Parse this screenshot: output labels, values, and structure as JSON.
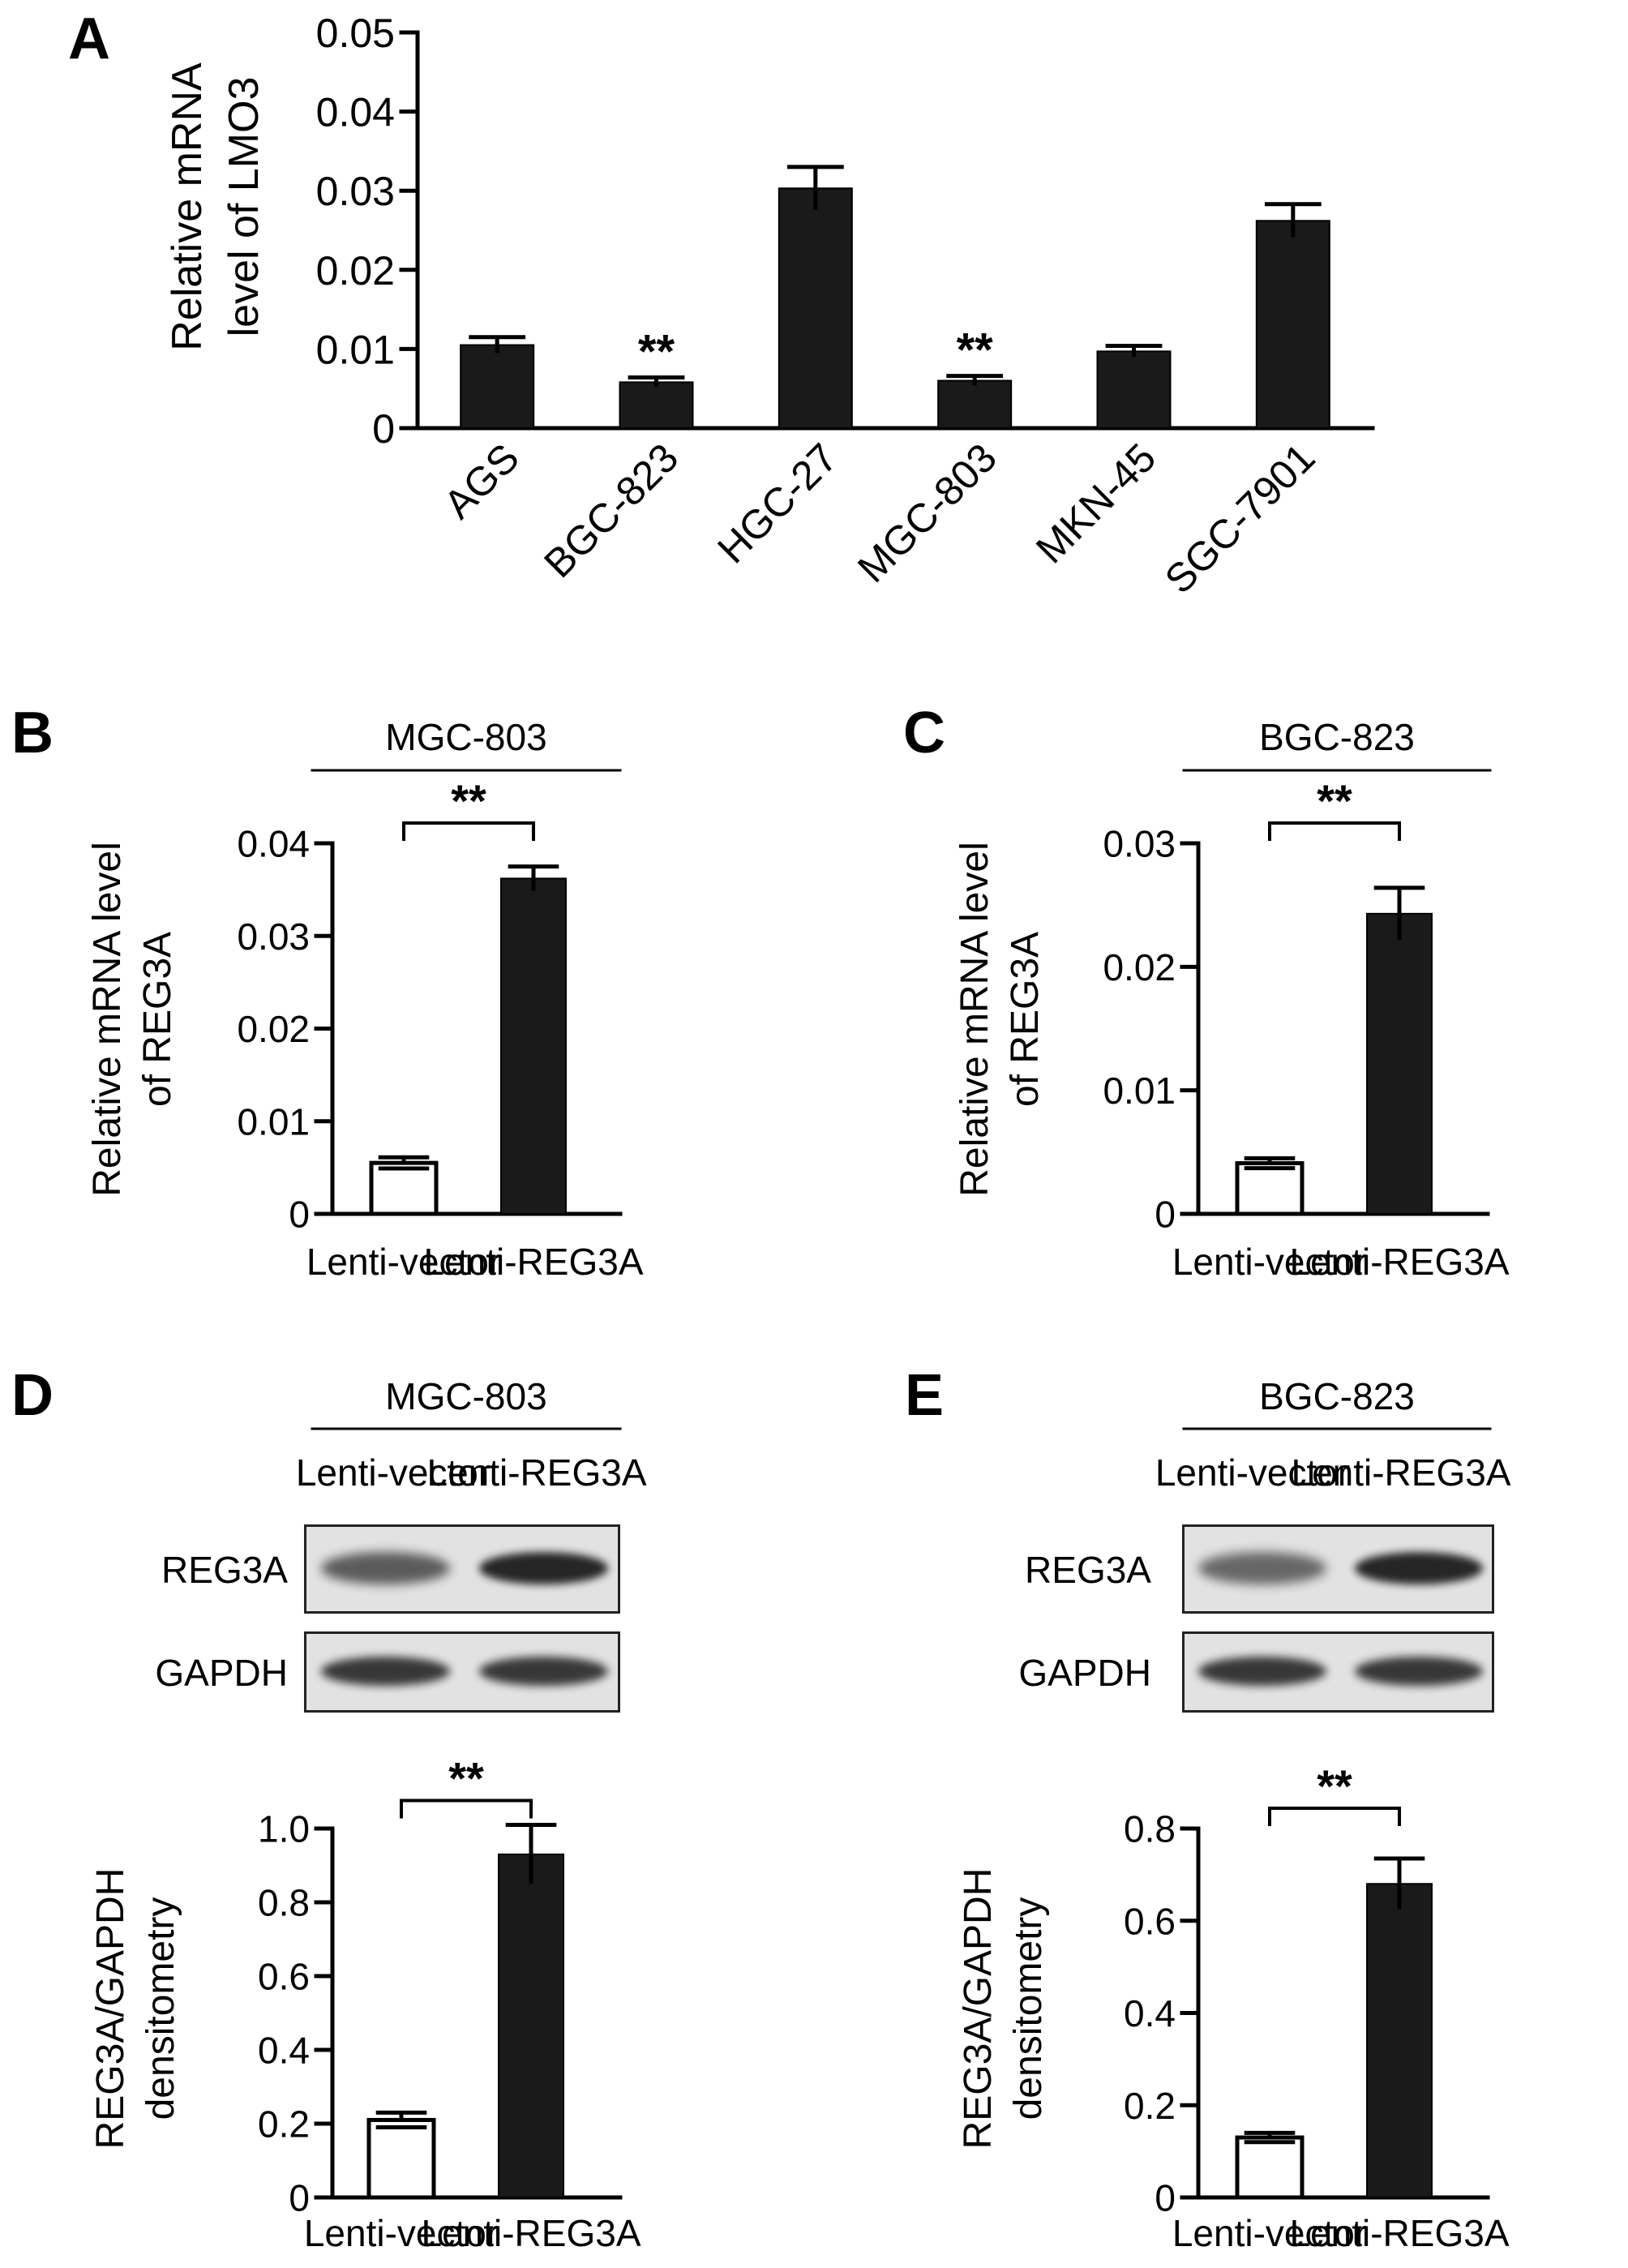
{
  "colors": {
    "filled_bar": "#1a1a1a",
    "open_bar": "#ffffff",
    "axis": "#000000",
    "blot_bg": "#e2e2e2",
    "band": "#1c1c1c"
  },
  "chart_data": [
    {
      "panel": "A",
      "type": "bar",
      "ylabel": [
        "Relative mRNA",
        "level of LMO3"
      ],
      "categories": [
        "AGS",
        "BGC-823",
        "HGC-27",
        "MGC-803",
        "MKN-45",
        "SGC-7901"
      ],
      "values": [
        0.0105,
        0.0058,
        0.0303,
        0.006,
        0.0097,
        0.0262
      ],
      "errors": [
        0.001,
        0.0006,
        0.0027,
        0.0006,
        0.0007,
        0.0021
      ],
      "significance": [
        "",
        "**",
        "",
        "**",
        "",
        ""
      ],
      "fills": [
        "filled",
        "filled",
        "filled",
        "filled",
        "filled",
        "filled"
      ],
      "ylim": [
        0,
        0.05
      ],
      "yticks": [
        0,
        0.01,
        0.02,
        0.03,
        0.04,
        0.05
      ],
      "yticklabels": [
        "0",
        "0.01",
        "0.02",
        "0.03",
        "0.04",
        "0.05"
      ]
    },
    {
      "panel": "B",
      "type": "bar",
      "header": "MGC-803",
      "ylabel": [
        "Relative mRNA level",
        "of REG3A"
      ],
      "categories": [
        "Lenti-vector",
        "Lenti-REG3A"
      ],
      "values": [
        0.0055,
        0.0362
      ],
      "errors": [
        0.0006,
        0.0013
      ],
      "fills": [
        "open",
        "filled"
      ],
      "significance_bracket": "**",
      "ylim": [
        0,
        0.04
      ],
      "yticks": [
        0,
        0.01,
        0.02,
        0.03,
        0.04
      ],
      "yticklabels": [
        "0",
        "0.01",
        "0.02",
        "0.03",
        "0.04"
      ]
    },
    {
      "panel": "C",
      "type": "bar",
      "header": "BGC-823",
      "ylabel": [
        "Relative mRNA level",
        "of REG3A"
      ],
      "categories": [
        "Lenti-vector",
        "Lenti-REG3A"
      ],
      "values": [
        0.0041,
        0.0243
      ],
      "errors": [
        0.0004,
        0.0021
      ],
      "fills": [
        "open",
        "filled"
      ],
      "significance_bracket": "**",
      "ylim": [
        0,
        0.03
      ],
      "yticks": [
        0,
        0.01,
        0.02,
        0.03
      ],
      "yticklabels": [
        "0",
        "0.01",
        "0.02",
        "0.03"
      ]
    },
    {
      "panel": "D",
      "type": "bar",
      "ylabel": [
        "REG3A/GAPDH",
        "densitometry"
      ],
      "categories": [
        "Lenti-vector",
        "Lenti-REG3A"
      ],
      "values": [
        0.21,
        0.93
      ],
      "errors": [
        0.02,
        0.08
      ],
      "fills": [
        "open",
        "filled"
      ],
      "significance_bracket": "**",
      "ylim": [
        0,
        1.0
      ],
      "yticks": [
        0,
        0.2,
        0.4,
        0.6,
        0.8,
        1.0
      ],
      "yticklabels": [
        "0",
        "0.2",
        "0.4",
        "0.6",
        "0.8",
        "1.0"
      ]
    },
    {
      "panel": "E",
      "type": "bar",
      "ylabel": [
        "REG3A/GAPDH",
        "densitometry"
      ],
      "categories": [
        "Lenti-vector",
        "Lenti-REG3A"
      ],
      "values": [
        0.13,
        0.68
      ],
      "errors": [
        0.01,
        0.055
      ],
      "fills": [
        "open",
        "filled"
      ],
      "significance_bracket": "**",
      "ylim": [
        0,
        0.8
      ],
      "yticks": [
        0,
        0.2,
        0.4,
        0.6,
        0.8
      ],
      "yticklabels": [
        "0",
        "0.2",
        "0.4",
        "0.6",
        "0.8"
      ]
    }
  ],
  "blots": [
    {
      "panel": "D",
      "header": "MGC-803",
      "lanes": [
        "Lenti-vector",
        "Lenti-REG3A"
      ],
      "rows": [
        {
          "label": "REG3A",
          "intensity": [
            0.55,
            1.0
          ]
        },
        {
          "label": "GAPDH",
          "intensity": [
            0.85,
            0.85
          ]
        }
      ]
    },
    {
      "panel": "E",
      "header": "BGC-823",
      "lanes": [
        "Lenti-vector",
        "Lenti-REG3A"
      ],
      "rows": [
        {
          "label": "REG3A",
          "intensity": [
            0.45,
            1.0
          ]
        },
        {
          "label": "GAPDH",
          "intensity": [
            0.85,
            0.85
          ]
        }
      ]
    }
  ]
}
